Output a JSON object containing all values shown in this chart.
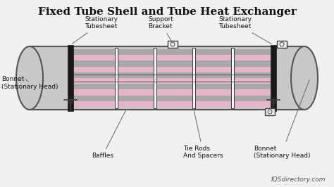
{
  "title": "Fixed Tube Shell and Tube Heat Exchanger",
  "bg_color": "#f0f0f0",
  "shell_color": "#c8c8c8",
  "shell_edge": "#555555",
  "tube_pink": "#e8b4c8",
  "tube_gray": "#a8a8a8",
  "black": "#1a1a1a",
  "dark_gray": "#404040",
  "label_color": "#111111",
  "watermark": "IQSdirectory.com",
  "labels": {
    "bonnet_left": "Bonnet\n(Stationary Head)",
    "bonnet_right": "Bonnet\n(Stationary Head)",
    "tubesheet_left": "Stationary\nTubesheet",
    "tubesheet_right": "Stationary\nTubesheet",
    "support": "Support\nBracket",
    "baffles": "Baffles",
    "tierods": "Tie Rods\nAnd Spacers"
  }
}
